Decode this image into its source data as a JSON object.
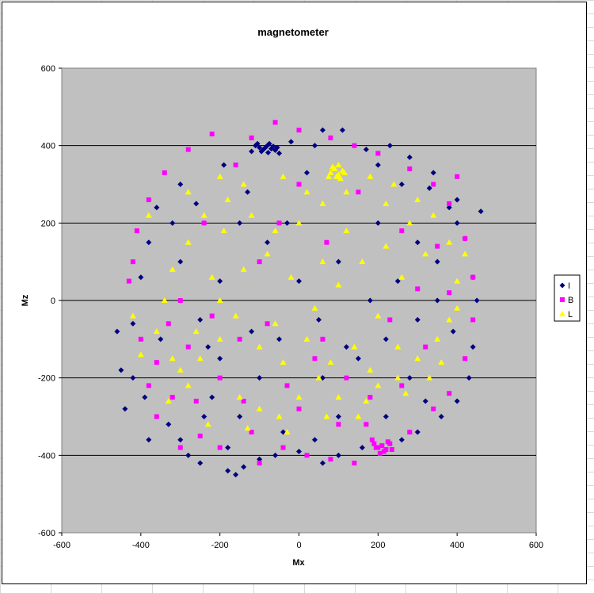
{
  "chart_data": {
    "type": "scatter",
    "title": "magnetometer",
    "xlabel": "Mx",
    "ylabel": "Mz",
    "xlim": [
      -600,
      600
    ],
    "ylim": [
      -600,
      600
    ],
    "xticks": [
      -600,
      -400,
      -200,
      0,
      200,
      400,
      600
    ],
    "yticks": [
      -600,
      -400,
      -200,
      0,
      200,
      400,
      600
    ],
    "grid": "horizontal major gridlines",
    "plot_background": "#c0c0c0",
    "legend_position": "right",
    "series": [
      {
        "name": "I",
        "marker": "diamond",
        "color": "#000080",
        "points": [
          [
            -110,
            400
          ],
          [
            -100,
            395
          ],
          [
            -90,
            390
          ],
          [
            -80,
            400
          ],
          [
            -70,
            392
          ],
          [
            -60,
            388
          ],
          [
            -95,
            385
          ],
          [
            -75,
            405
          ],
          [
            -65,
            398
          ],
          [
            -85,
            395
          ],
          [
            -120,
            385
          ],
          [
            -50,
            380
          ],
          [
            -105,
            405
          ],
          [
            -55,
            395
          ],
          [
            -78,
            382
          ],
          [
            60,
            440
          ],
          [
            110,
            440
          ],
          [
            -20,
            410
          ],
          [
            40,
            400
          ],
          [
            230,
            400
          ],
          [
            170,
            390
          ],
          [
            280,
            370
          ],
          [
            340,
            330
          ],
          [
            400,
            260
          ],
          [
            460,
            230
          ],
          [
            -460,
            -80
          ],
          [
            -450,
            -180
          ],
          [
            -440,
            -280
          ],
          [
            -420,
            -200
          ],
          [
            -400,
            60
          ],
          [
            -380,
            150
          ],
          [
            -360,
            240
          ],
          [
            -300,
            300
          ],
          [
            -280,
            -400
          ],
          [
            -250,
            -420
          ],
          [
            -180,
            -440
          ],
          [
            -160,
            -450
          ],
          [
            -140,
            -430
          ],
          [
            -100,
            -410
          ],
          [
            -60,
            -400
          ],
          [
            0,
            -390
          ],
          [
            60,
            -420
          ],
          [
            100,
            -400
          ],
          [
            160,
            -380
          ],
          [
            260,
            -360
          ],
          [
            300,
            -340
          ],
          [
            360,
            -300
          ],
          [
            400,
            -260
          ],
          [
            430,
            -200
          ],
          [
            440,
            -120
          ],
          [
            450,
            0
          ],
          [
            440,
            60
          ],
          [
            420,
            160
          ],
          [
            380,
            240
          ],
          [
            330,
            290
          ],
          [
            -240,
            -300
          ],
          [
            -220,
            -250
          ],
          [
            -350,
            -100
          ],
          [
            -300,
            100
          ],
          [
            -250,
            -50
          ],
          [
            -200,
            -150
          ],
          [
            -150,
            -300
          ],
          [
            -100,
            -200
          ],
          [
            -50,
            -100
          ],
          [
            0,
            50
          ],
          [
            50,
            -50
          ],
          [
            100,
            100
          ],
          [
            150,
            -150
          ],
          [
            200,
            200
          ],
          [
            250,
            50
          ],
          [
            300,
            -50
          ],
          [
            350,
            0
          ],
          [
            -150,
            200
          ],
          [
            -200,
            50
          ],
          [
            100,
            -300
          ],
          [
            -330,
            -320
          ],
          [
            -380,
            -360
          ],
          [
            -230,
            -120
          ],
          [
            -190,
            350
          ],
          [
            20,
            330
          ],
          [
            120,
            -120
          ],
          [
            -40,
            -340
          ],
          [
            280,
            -200
          ],
          [
            180,
            0
          ],
          [
            -80,
            150
          ],
          [
            -420,
            -60
          ],
          [
            -390,
            -250
          ],
          [
            -300,
            -360
          ],
          [
            -180,
            -380
          ],
          [
            40,
            -360
          ],
          [
            220,
            -300
          ],
          [
            320,
            -260
          ],
          [
            390,
            -80
          ],
          [
            400,
            200
          ],
          [
            350,
            100
          ],
          [
            -320,
            200
          ],
          [
            -260,
            250
          ],
          [
            -130,
            280
          ],
          [
            260,
            300
          ],
          [
            200,
            350
          ],
          [
            -30,
            200
          ],
          [
            60,
            -200
          ],
          [
            -120,
            -80
          ],
          [
            220,
            -100
          ],
          [
            300,
            150
          ]
        ]
      },
      {
        "name": "B",
        "marker": "square",
        "color": "#ff00ff",
        "points": [
          [
            200,
            -380
          ],
          [
            210,
            -375
          ],
          [
            220,
            -385
          ],
          [
            230,
            -370
          ],
          [
            190,
            -370
          ],
          [
            215,
            -390
          ],
          [
            225,
            -365
          ],
          [
            205,
            -395
          ],
          [
            195,
            -380
          ],
          [
            235,
            -385
          ],
          [
            185,
            -360
          ],
          [
            -420,
            100
          ],
          [
            -430,
            50
          ],
          [
            -400,
            -100
          ],
          [
            -380,
            -220
          ],
          [
            -360,
            -300
          ],
          [
            -320,
            -250
          ],
          [
            -300,
            -380
          ],
          [
            -250,
            -350
          ],
          [
            -200,
            -380
          ],
          [
            -100,
            -420
          ],
          [
            -40,
            -380
          ],
          [
            20,
            -400
          ],
          [
            80,
            -410
          ],
          [
            140,
            -420
          ],
          [
            280,
            -340
          ],
          [
            340,
            -280
          ],
          [
            380,
            -240
          ],
          [
            420,
            -150
          ],
          [
            440,
            -50
          ],
          [
            440,
            60
          ],
          [
            420,
            160
          ],
          [
            380,
            250
          ],
          [
            340,
            300
          ],
          [
            280,
            340
          ],
          [
            200,
            380
          ],
          [
            140,
            400
          ],
          [
            80,
            420
          ],
          [
            0,
            440
          ],
          [
            -60,
            460
          ],
          [
            -120,
            420
          ],
          [
            -220,
            430
          ],
          [
            -280,
            390
          ],
          [
            -340,
            330
          ],
          [
            -380,
            260
          ],
          [
            -410,
            180
          ],
          [
            -280,
            -120
          ],
          [
            -200,
            -200
          ],
          [
            -150,
            -100
          ],
          [
            -100,
            100
          ],
          [
            -50,
            200
          ],
          [
            0,
            300
          ],
          [
            60,
            -100
          ],
          [
            120,
            -200
          ],
          [
            170,
            -320
          ],
          [
            230,
            -50
          ],
          [
            300,
            30
          ],
          [
            350,
            140
          ],
          [
            400,
            320
          ],
          [
            -160,
            350
          ],
          [
            -240,
            200
          ],
          [
            -300,
            0
          ],
          [
            -260,
            -260
          ],
          [
            -140,
            -260
          ],
          [
            -30,
            -220
          ],
          [
            40,
            -150
          ],
          [
            100,
            -320
          ],
          [
            260,
            -220
          ],
          [
            320,
            -120
          ],
          [
            380,
            20
          ],
          [
            -360,
            -160
          ],
          [
            -330,
            -60
          ],
          [
            -220,
            -40
          ],
          [
            -120,
            -340
          ],
          [
            0,
            -280
          ],
          [
            150,
            280
          ],
          [
            260,
            180
          ],
          [
            -80,
            -60
          ],
          [
            70,
            150
          ],
          [
            180,
            -250
          ]
        ]
      },
      {
        "name": "L",
        "marker": "triangle",
        "color": "#ffff00",
        "points": [
          [
            80,
            330
          ],
          [
            90,
            340
          ],
          [
            100,
            325
          ],
          [
            110,
            335
          ],
          [
            95,
            320
          ],
          [
            85,
            345
          ],
          [
            105,
            315
          ],
          [
            115,
            330
          ],
          [
            75,
            320
          ],
          [
            100,
            350
          ],
          [
            -300,
            -180
          ],
          [
            -280,
            -220
          ],
          [
            -250,
            -150
          ],
          [
            -200,
            -100
          ],
          [
            -150,
            -250
          ],
          [
            -100,
            -280
          ],
          [
            -50,
            -300
          ],
          [
            0,
            -250
          ],
          [
            50,
            -200
          ],
          [
            100,
            -250
          ],
          [
            150,
            -300
          ],
          [
            200,
            -220
          ],
          [
            250,
            -200
          ],
          [
            300,
            -150
          ],
          [
            350,
            -100
          ],
          [
            380,
            -50
          ],
          [
            400,
            50
          ],
          [
            380,
            150
          ],
          [
            340,
            220
          ],
          [
            300,
            260
          ],
          [
            240,
            300
          ],
          [
            180,
            320
          ],
          [
            120,
            280
          ],
          [
            60,
            250
          ],
          [
            0,
            200
          ],
          [
            -60,
            180
          ],
          [
            -120,
            220
          ],
          [
            -180,
            260
          ],
          [
            -240,
            220
          ],
          [
            -280,
            150
          ],
          [
            -320,
            80
          ],
          [
            -340,
            0
          ],
          [
            -360,
            -80
          ],
          [
            -320,
            -150
          ],
          [
            -260,
            -80
          ],
          [
            -200,
            0
          ],
          [
            -140,
            80
          ],
          [
            -80,
            120
          ],
          [
            -20,
            60
          ],
          [
            40,
            -20
          ],
          [
            100,
            40
          ],
          [
            160,
            100
          ],
          [
            220,
            140
          ],
          [
            260,
            60
          ],
          [
            200,
            -40
          ],
          [
            140,
            -120
          ],
          [
            80,
            -160
          ],
          [
            20,
            -100
          ],
          [
            -40,
            -160
          ],
          [
            -100,
            -120
          ],
          [
            -160,
            -40
          ],
          [
            -220,
            60
          ],
          [
            -280,
            280
          ],
          [
            -200,
            320
          ],
          [
            -140,
            300
          ],
          [
            -40,
            320
          ],
          [
            20,
            280
          ],
          [
            220,
            250
          ],
          [
            280,
            200
          ],
          [
            320,
            120
          ],
          [
            -380,
            220
          ],
          [
            -420,
            -40
          ],
          [
            -400,
            -140
          ],
          [
            -330,
            -260
          ],
          [
            -230,
            -320
          ],
          [
            -130,
            -330
          ],
          [
            -30,
            -340
          ],
          [
            70,
            -300
          ],
          [
            170,
            -260
          ],
          [
            270,
            -240
          ],
          [
            330,
            -200
          ],
          [
            360,
            -160
          ],
          [
            400,
            -20
          ],
          [
            420,
            120
          ],
          [
            -60,
            -60
          ],
          [
            180,
            -180
          ],
          [
            250,
            -120
          ],
          [
            -190,
            180
          ],
          [
            120,
            180
          ],
          [
            60,
            100
          ]
        ]
      }
    ]
  }
}
